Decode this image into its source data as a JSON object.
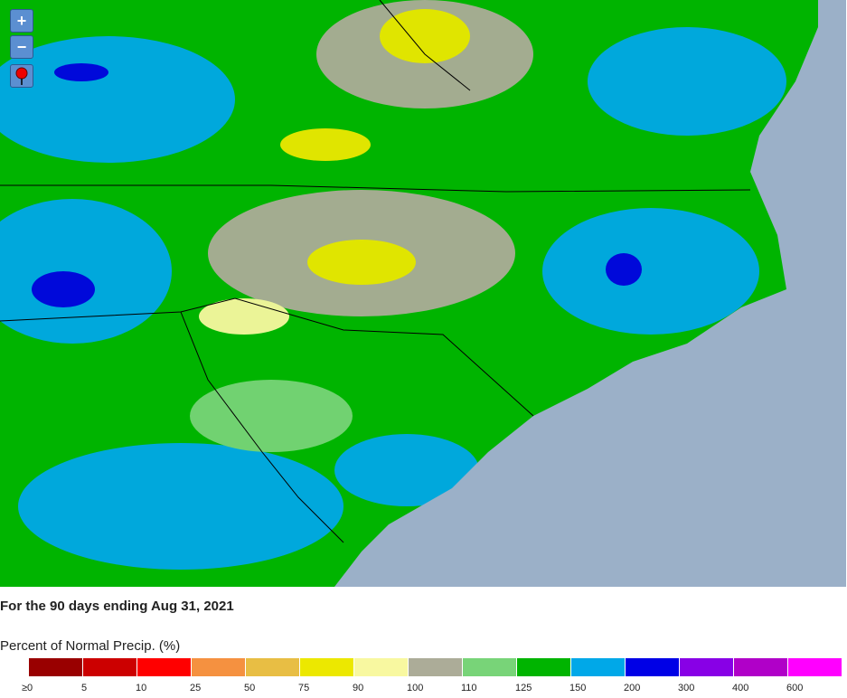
{
  "controls": {
    "zoom_in": "+",
    "zoom_out": "−"
  },
  "caption": "For the 90 days ending Aug 31, 2021",
  "legend": {
    "title": "Percent of Normal Precip. (%)",
    "items": [
      {
        "label": "≥0",
        "color": "#990000"
      },
      {
        "label": "5",
        "color": "#cc0000"
      },
      {
        "label": "10",
        "color": "#ff0000"
      },
      {
        "label": "25",
        "color": "#f59140"
      },
      {
        "label": "50",
        "color": "#e8be44"
      },
      {
        "label": "75",
        "color": "#ece800"
      },
      {
        "label": "90",
        "color": "#f8f8a0"
      },
      {
        "label": "100",
        "color": "#acac98"
      },
      {
        "label": "110",
        "color": "#78d478"
      },
      {
        "label": "125",
        "color": "#00b400"
      },
      {
        "label": "150",
        "color": "#00a8e8"
      },
      {
        "label": "200",
        "color": "#0000e6"
      },
      {
        "label": "300",
        "color": "#8800e6"
      },
      {
        "label": "400",
        "color": "#b000c8"
      },
      {
        "label": "600",
        "color": "#ff00ff"
      }
    ]
  }
}
